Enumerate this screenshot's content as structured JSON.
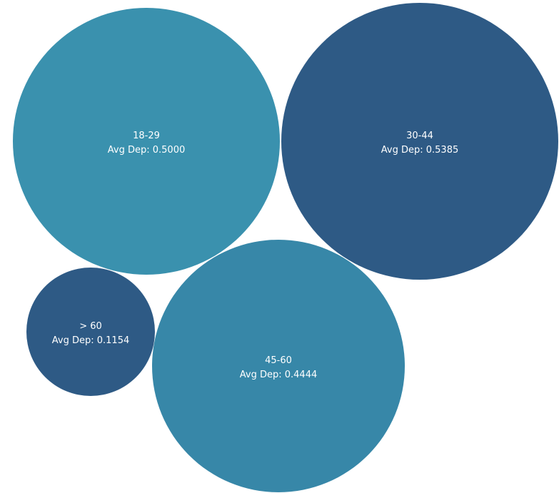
{
  "chart_data": {
    "type": "bubble",
    "measure_label": "Avg Dep",
    "bubbles": [
      {
        "category": "18-29",
        "value_text": "0.5000",
        "value": 0.5,
        "color": "#3a91ae"
      },
      {
        "category": "30-44",
        "value_text": "0.5385",
        "value": 0.5385,
        "color": "#2e5a85"
      },
      {
        "category": "> 60",
        "value_text": "0.1154",
        "value": 0.1154,
        "color": "#2e5a85"
      },
      {
        "category": "45-60",
        "value_text": "0.4444",
        "value": 0.4444,
        "color": "#3787a8"
      }
    ]
  }
}
